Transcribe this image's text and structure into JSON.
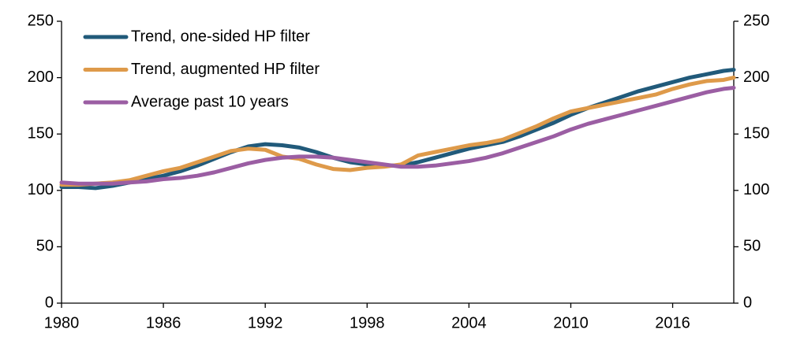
{
  "chart_data": {
    "type": "line",
    "x": [
      1980,
      1981,
      1982,
      1983,
      1984,
      1985,
      1986,
      1987,
      1988,
      1989,
      1990,
      1991,
      1992,
      1993,
      1994,
      1995,
      1996,
      1997,
      1998,
      1999,
      2000,
      2001,
      2002,
      2003,
      2004,
      2005,
      2006,
      2007,
      2008,
      2009,
      2010,
      2011,
      2012,
      2013,
      2014,
      2015,
      2016,
      2017,
      2018,
      2019,
      2019.6
    ],
    "series": [
      {
        "name": "Trend, one-sided HP filter",
        "color": "#215a7a",
        "values": [
          103,
          103,
          102,
          104,
          107,
          110,
          113,
          117,
          122,
          128,
          134,
          139,
          141,
          140,
          138,
          134,
          129,
          125,
          123,
          122,
          122,
          125,
          129,
          133,
          137,
          140,
          143,
          148,
          154,
          160,
          167,
          173,
          178,
          183,
          188,
          192,
          196,
          200,
          203,
          206,
          207
        ]
      },
      {
        "name": "Trend, augmented HP filter",
        "color": "#de9a4a",
        "values": [
          105,
          105,
          106,
          107,
          109,
          113,
          117,
          120,
          125,
          130,
          135,
          137,
          136,
          130,
          128,
          123,
          119,
          118,
          120,
          121,
          123,
          131,
          134,
          137,
          140,
          142,
          145,
          151,
          157,
          164,
          170,
          173,
          176,
          179,
          182,
          185,
          190,
          194,
          197,
          198,
          200
        ]
      },
      {
        "name": "Average past 10 years",
        "color": "#9b5ea3",
        "values": [
          107,
          106,
          106,
          106,
          107,
          108,
          110,
          111,
          113,
          116,
          120,
          124,
          127,
          129,
          130,
          130,
          129,
          127,
          125,
          123,
          121,
          121,
          122,
          124,
          126,
          129,
          133,
          138,
          143,
          148,
          154,
          159,
          163,
          167,
          171,
          175,
          179,
          183,
          187,
          190,
          191
        ]
      }
    ],
    "xlim": [
      1980,
      2019.6
    ],
    "xticks": [
      1980,
      1986,
      1992,
      1998,
      2004,
      2010,
      2016
    ],
    "ylim": [
      0,
      250
    ],
    "yticks": [
      0,
      50,
      100,
      150,
      200,
      250
    ],
    "y2lim": [
      0,
      250
    ],
    "y2ticks": [
      0,
      50,
      100,
      150,
      200,
      250
    ],
    "legend": "upper-left",
    "grid": false
  }
}
